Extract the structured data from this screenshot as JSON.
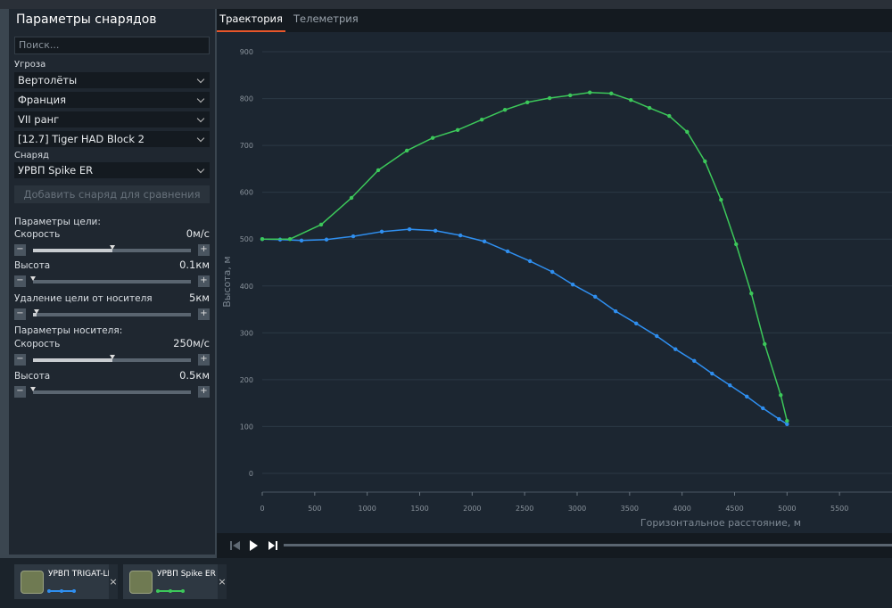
{
  "sidebar": {
    "title": "Параметры снарядов",
    "search": "Поиск...",
    "threat_label": "Угроза",
    "threat": [
      "Вертолёты",
      "Франция",
      "VII ранг",
      "[12.7] Tiger HAD Block 2"
    ],
    "shell_label": "Снаряд",
    "shell": "УРВП Spike ER",
    "add_button": "Добавить снаряд для сравнения",
    "target_params": "Параметры цели:",
    "target_sliders": [
      {
        "label": "Скорость",
        "value": "0м/с"
      },
      {
        "label": "Высота",
        "value": "0.1км"
      },
      {
        "label": "Удаление цели от носителя",
        "value": "5км"
      }
    ],
    "carrier_params": "Параметры носителя:",
    "carrier_sliders": [
      {
        "label": "Скорость",
        "value": "250м/с"
      },
      {
        "label": "Высота",
        "value": "0.5км"
      }
    ]
  },
  "tabs": [
    "Траектория",
    "Телеметрия"
  ],
  "chart_data": {
    "type": "line",
    "x_label": "Горизонтальное расстояние, м",
    "y_label": "Высота, м",
    "xlim": [
      0,
      6000
    ],
    "xticks": [
      0,
      500,
      1000,
      1500,
      2000,
      2500,
      3000,
      3500,
      4000,
      4500,
      5000,
      5500
    ],
    "ylim": [
      -40,
      940
    ],
    "yticks": [
      0,
      100,
      200,
      300,
      400,
      500,
      600,
      700,
      800,
      900
    ],
    "grid": true,
    "series": [
      {
        "name": "УРВП TRIGAT-LR",
        "color": "#2f8ff0",
        "x": [
          0,
          170,
          374,
          612,
          867,
          1139,
          1403,
          1650,
          1888,
          2117,
          2338,
          2551,
          2764,
          2959,
          3172,
          3367,
          3563,
          3759,
          3937,
          4116,
          4286,
          4456,
          4617,
          4770,
          4923,
          5000
        ],
        "values": [
          500,
          499,
          497,
          499,
          506,
          516,
          521,
          518,
          508,
          495,
          474,
          453,
          430,
          403,
          377,
          346,
          320,
          293,
          265,
          240,
          213,
          188,
          164,
          139,
          116,
          105
        ]
      },
      {
        "name": "УРВП Spike ER",
        "color": "#3cc85a",
        "x": [
          0,
          264,
          561,
          850,
          1105,
          1378,
          1624,
          1862,
          2092,
          2313,
          2526,
          2738,
          2934,
          3121,
          3325,
          3512,
          3690,
          3878,
          4048,
          4218,
          4371,
          4515,
          4660,
          4787,
          4940,
          5000
        ],
        "values": [
          500,
          500,
          531,
          588,
          647,
          689,
          716,
          733,
          755,
          776,
          792,
          801,
          807,
          813,
          811,
          797,
          780,
          763,
          729,
          666,
          584,
          489,
          384,
          276,
          167,
          112
        ]
      }
    ]
  }
}
